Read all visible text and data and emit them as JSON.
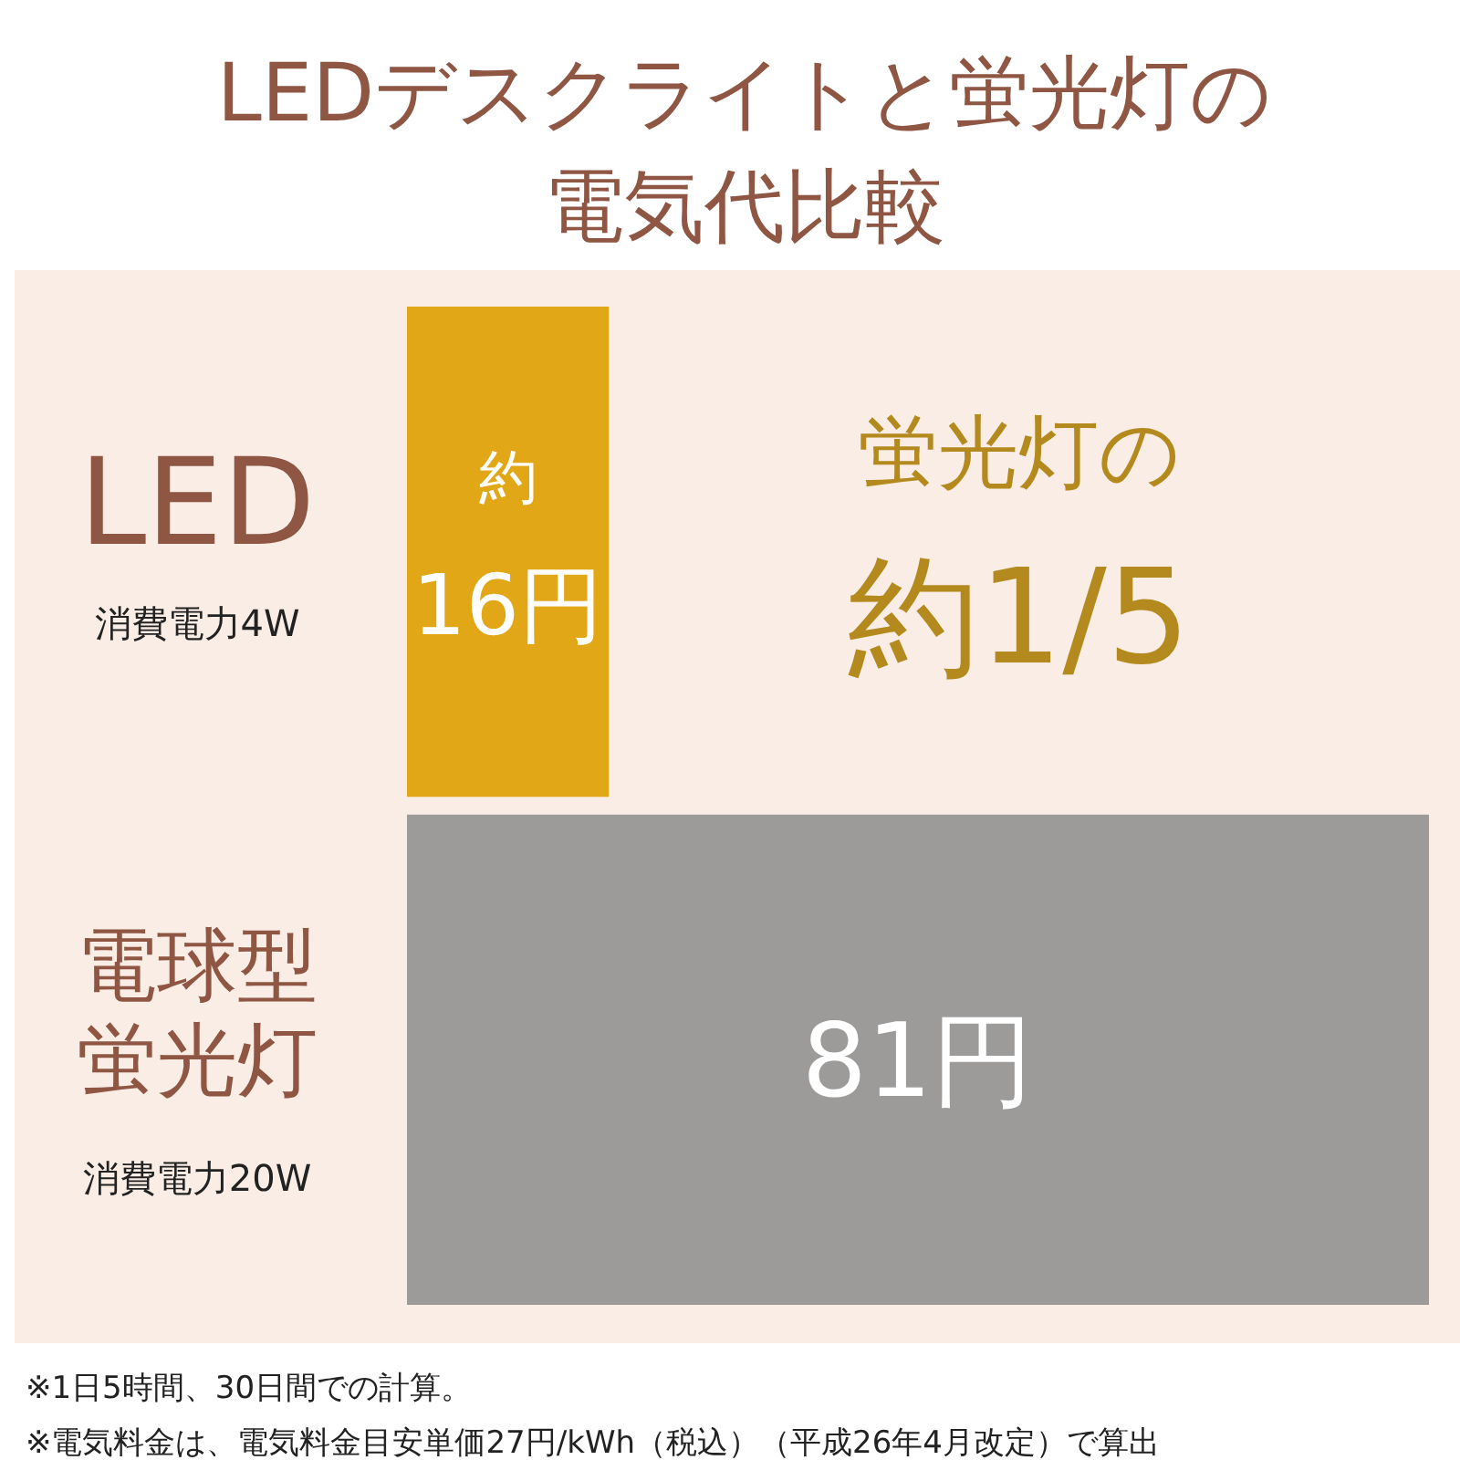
{
  "chart_data": {
    "type": "bar",
    "orientation": "horizontal",
    "title": "LEDデスクライトと蛍光灯の電気代比較",
    "categories": [
      "LED",
      "電球型蛍光灯"
    ],
    "values": [
      16,
      81
    ],
    "colors": [
      "#e2a717",
      "#9c9b9a"
    ],
    "value_labels": [
      "約16円",
      "81円"
    ],
    "annotations": [
      "蛍光灯の約1/5",
      "消費電力4W",
      "消費電力20W",
      "※1日5時間、30日間での計算。",
      "※電気料金は、電気料金目安単価27円/kWh（税込）（平成26年4月改定）で算出"
    ]
  }
}
